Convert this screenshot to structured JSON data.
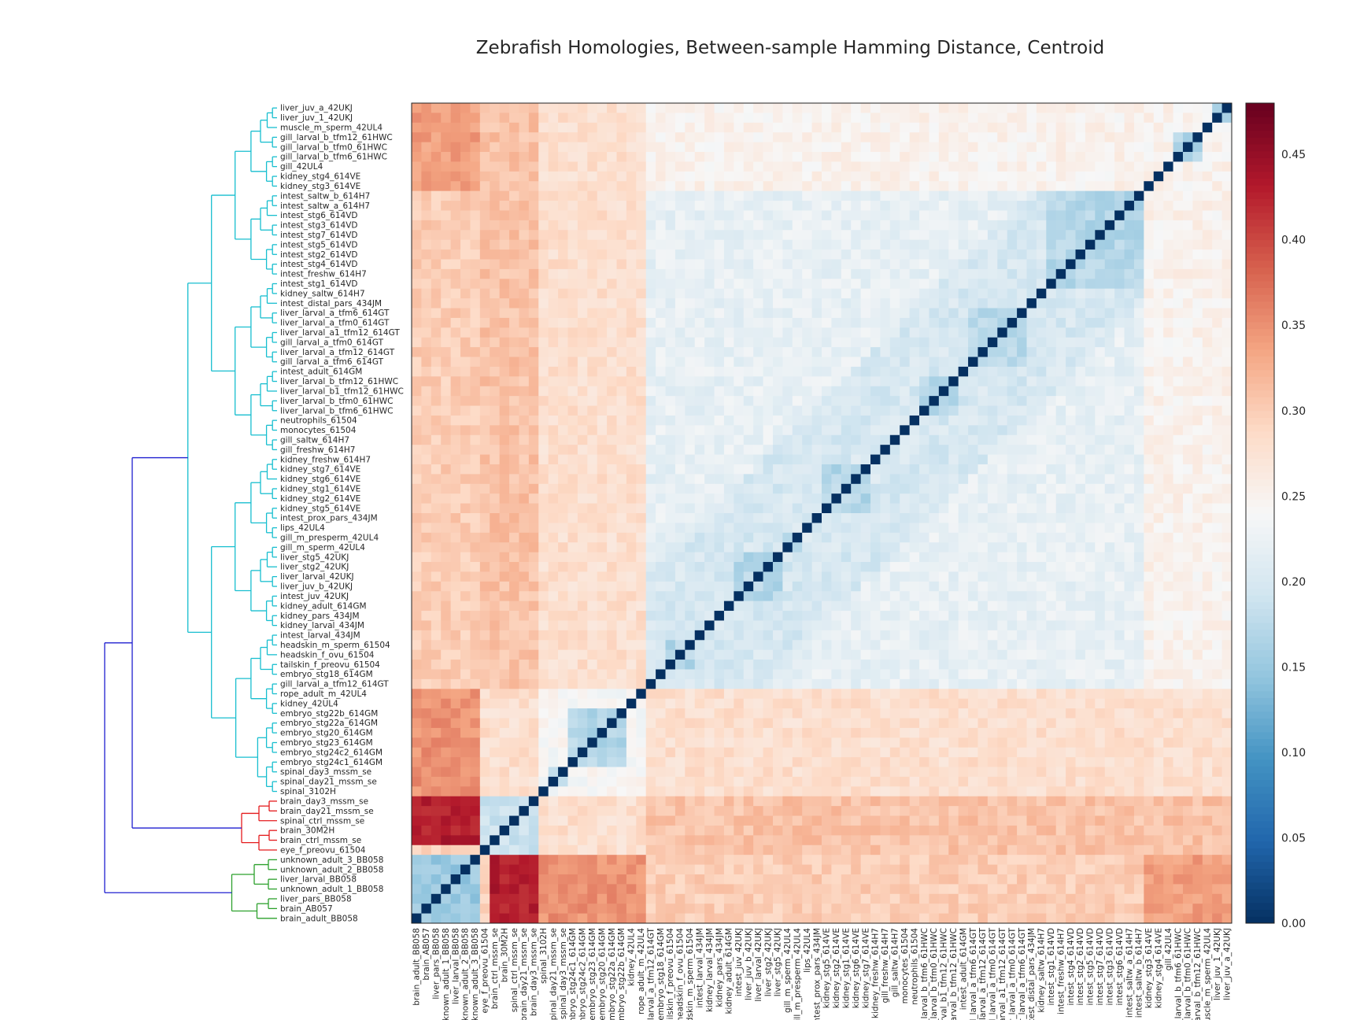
{
  "chart_data": {
    "type": "heatmap",
    "title": "Zebrafish Homologies, Between-sample Hamming Distance, Centroid",
    "row_labels": [
      "liver_juv_a_42UKJ",
      "liver_juv_1_42UKJ",
      "muscle_m_sperm_42UL4",
      "gill_larval_b_tfm12_61HWC",
      "gill_larval_b_tfm0_61HWC",
      "gill_larval_b_tfm6_61HWC",
      "gill_42UL4",
      "kidney_stg4_614VE",
      "kidney_stg3_614VE",
      "intest_saltw_b_614H7",
      "intest_saltw_a_614H7",
      "intest_stg6_614VD",
      "intest_stg3_614VD",
      "intest_stg7_614VD",
      "intest_stg5_614VD",
      "intest_stg2_614VD",
      "intest_stg4_614VD",
      "intest_freshw_614H7",
      "intest_stg1_614VD",
      "kidney_saltw_614H7",
      "intest_distal_pars_434JM",
      "liver_larval_a_tfm6_614GT",
      "liver_larval_a_tfm0_614GT",
      "liver_larval_a1_tfm12_614GT",
      "gill_larval_a_tfm0_614GT",
      "liver_larval_a_tfm12_614GT",
      "gill_larval_a_tfm6_614GT",
      "intest_adult_614GM",
      "liver_larval_b_tfm12_61HWC",
      "liver_larval_b1_tfm12_61HWC",
      "liver_larval_b_tfm0_61HWC",
      "liver_larval_b_tfm6_61HWC",
      "neutrophils_61504",
      "monocytes_61504",
      "gill_saltw_614H7",
      "gill_freshw_614H7",
      "kidney_freshw_614H7",
      "kidney_stg7_614VE",
      "kidney_stg6_614VE",
      "kidney_stg1_614VE",
      "kidney_stg2_614VE",
      "kidney_stg5_614VE",
      "intest_prox_pars_434JM",
      "lips_42UL4",
      "gill_m_presperm_42UL4",
      "gill_m_sperm_42UL4",
      "liver_stg5_42UKJ",
      "liver_stg2_42UKJ",
      "liver_larval_42UKJ",
      "liver_juv_b_42UKJ",
      "intest_juv_42UKJ",
      "kidney_adult_614GM",
      "kidney_pars_434JM",
      "kidney_larval_434JM",
      "intest_larval_434JM",
      "headskin_m_sperm_61504",
      "headskin_f_ovu_61504",
      "tailskin_f_preovu_61504",
      "embryo_stg18_614GM",
      "gill_larval_a_tfm12_614GT",
      "rope_adult_m_42UL4",
      "kidney_42UL4",
      "embryo_stg22b_614GM",
      "embryo_stg22a_614GM",
      "embryo_stg20_614GM",
      "embryo_stg23_614GM",
      "embryo_stg24c2_614GM",
      "embryo_stg24c1_614GM",
      "spinal_day3_mssm_se",
      "spinal_day21_mssm_se",
      "spinal_3102H",
      "brain_day3_mssm_se",
      "brain_day21_mssm_se",
      "spinal_ctrl_mssm_se",
      "brain_30M2H",
      "brain_ctrl_mssm_se",
      "eye_f_preovu_61504",
      "unknown_adult_3_BB058",
      "unknown_adult_2_BB058",
      "liver_larval_BB058",
      "unknown_adult_1_BB058",
      "liver_pars_BB058",
      "brain_AB057",
      "brain_adult_BB058"
    ],
    "column_labels": [
      "brain_adult_BB058",
      "brain_AB057",
      "liver_pars_BB058",
      "unknown_adult_1_BB058",
      "liver_larval_BB058",
      "unknown_adult_2_BB058",
      "unknown_adult_3_BB058",
      "eye_f_preovu_61504",
      "brain_ctrl_mssm_se",
      "brain_30M2H",
      "spinal_ctrl_mssm_se",
      "brain_day21_mssm_se",
      "brain_day3_mssm_se",
      "spinal_3102H",
      "spinal_day21_mssm_se",
      "spinal_day3_mssm_se",
      "embryo_stg24c1_614GM",
      "embryo_stg24c2_614GM",
      "embryo_stg23_614GM",
      "embryo_stg20_614GM",
      "embryo_stg22a_614GM",
      "embryo_stg22b_614GM",
      "kidney_42UL4",
      "rope_adult_m_42UL4",
      "gill_larval_a_tfm12_614GT",
      "embryo_stg18_614GM",
      "tailskin_f_preovu_61504",
      "headskin_f_ovu_61504",
      "headskin_m_sperm_61504",
      "intest_larval_434JM",
      "kidney_larval_434JM",
      "kidney_pars_434JM",
      "kidney_adult_614GM",
      "intest_juv_42UKJ",
      "liver_juv_b_42UKJ",
      "liver_larval_42UKJ",
      "liver_stg2_42UKJ",
      "liver_stg5_42UKJ",
      "gill_m_sperm_42UL4",
      "gill_m_presperm_42UL4",
      "lips_42UL4",
      "intest_prox_pars_434JM",
      "kidney_stg5_614VE",
      "kidney_stg2_614VE",
      "kidney_stg1_614VE",
      "kidney_stg6_614VE",
      "kidney_stg7_614VE",
      "kidney_freshw_614H7",
      "gill_freshw_614H7",
      "gill_saltw_614H7",
      "monocytes_61504",
      "neutrophils_61504",
      "liver_larval_b_tfm6_61HWC",
      "liver_larval_b_tfm0_61HWC",
      "liver_larval_b1_tfm12_61HWC",
      "liver_larval_b_tfm12_61HWC",
      "intest_adult_614GM",
      "gill_larval_a_tfm6_614GT",
      "liver_larval_a_tfm12_614GT",
      "gill_larval_a_tfm0_614GT",
      "liver_larval_a1_tfm12_614GT",
      "liver_larval_a_tfm0_614GT",
      "liver_larval_a_tfm6_614GT",
      "intest_distal_pars_434JM",
      "kidney_saltw_614H7",
      "intest_stg1_614VD",
      "intest_freshw_614H7",
      "intest_stg4_614VD",
      "intest_stg2_614VD",
      "intest_stg5_614VD",
      "intest_stg7_614VD",
      "intest_stg3_614VD",
      "intest_stg6_614VD",
      "intest_saltw_a_614H7",
      "intest_saltw_b_614H7",
      "kidney_stg3_614VE",
      "kidney_stg4_614VE",
      "gill_42UL4",
      "gill_larval_b_tfm6_61HWC",
      "gill_larval_b_tfm0_61HWC",
      "gill_larval_b_tfm12_61HWC",
      "muscle_m_sperm_42UL4",
      "liver_juv_1_42UKJ",
      "liver_juv_a_42UKJ"
    ],
    "row_clusters": [
      1,
      1,
      1,
      1,
      1,
      1,
      1,
      1,
      1,
      1,
      1,
      1,
      1,
      1,
      1,
      1,
      1,
      1,
      1,
      1,
      1,
      1,
      1,
      1,
      1,
      1,
      1,
      1,
      1,
      1,
      1,
      1,
      1,
      1,
      1,
      1,
      1,
      1,
      1,
      1,
      1,
      1,
      1,
      1,
      1,
      1,
      1,
      1,
      1,
      1,
      1,
      1,
      1,
      1,
      1,
      1,
      1,
      1,
      1,
      1,
      1,
      1,
      1,
      1,
      1,
      1,
      1,
      1,
      1,
      1,
      1,
      2,
      2,
      2,
      2,
      2,
      2,
      3,
      3,
      3,
      3,
      3,
      3,
      3
    ],
    "blocks": [
      [
        0,
        1
      ],
      [
        3,
        5
      ],
      [
        9,
        18
      ],
      [
        21,
        26
      ],
      [
        28,
        31
      ],
      [
        37,
        41
      ],
      [
        44,
        45
      ],
      [
        46,
        50
      ],
      [
        55,
        57
      ],
      [
        62,
        67
      ],
      [
        68,
        69
      ],
      [
        71,
        75
      ],
      [
        77,
        83
      ]
    ],
    "colorbar": {
      "min": 0.0,
      "max": 0.48,
      "ticks": [
        "0.00",
        "0.05",
        "0.10",
        "0.15",
        "0.20",
        "0.25",
        "0.30",
        "0.35",
        "0.40",
        "0.45"
      ],
      "colormap": "RdBu_r"
    },
    "dendrogram_colors": [
      "#17becf",
      "#e41a1c",
      "#2ca02c",
      "#1f1fd0"
    ]
  }
}
